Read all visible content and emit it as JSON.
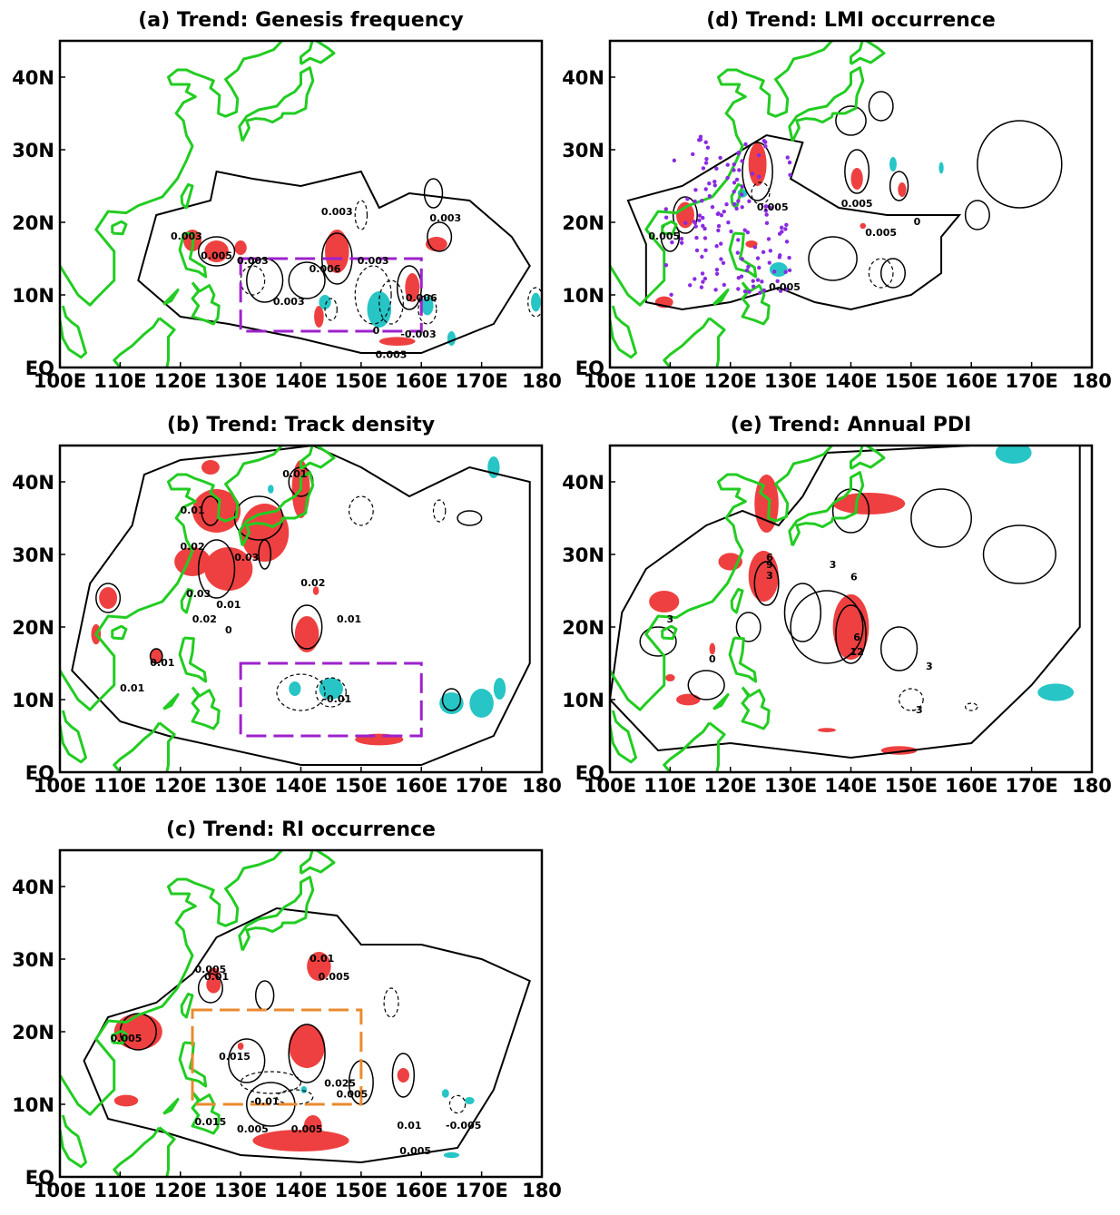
{
  "axes": {
    "lon_labels": [
      "100E",
      "110E",
      "120E",
      "130E",
      "140E",
      "150E",
      "160E",
      "170E",
      "180"
    ],
    "lat_labels": [
      "EQ",
      "10N",
      "20N",
      "30N",
      "40N"
    ]
  },
  "panels": [
    {
      "title": "(a) Trend: Genesis frequency",
      "contour_labels": [
        "0.003",
        "0.005",
        "0.003",
        "0.003",
        "0.006",
        "0.003",
        "0.003",
        "-0.003",
        "0.003",
        "0.003",
        "0.006",
        "0"
      ]
    },
    {
      "title": "(b) Trend: Track density",
      "contour_labels": [
        "0.01",
        "0.02",
        "0.03",
        "0.01",
        "0.02",
        "0.03",
        "0.02",
        "0.01",
        "0.01",
        "0.01",
        "0.01",
        "-0.01",
        "0"
      ]
    },
    {
      "title": "(c) Trend: RI occurrence",
      "contour_labels": [
        "0.005",
        "0.01",
        "0.01",
        "0.005",
        "0.005",
        "0.015",
        "0.025",
        "-0.01",
        "0.015",
        "0.005",
        "0.005",
        "0.005",
        "0.01",
        "-0.005",
        "0.005"
      ]
    },
    {
      "title": "(d) Trend: LMI occurrence",
      "contour_labels": [
        "0.005",
        "0.005",
        "0.005",
        "0.005",
        "0.005",
        "0"
      ]
    },
    {
      "title": "(e) Trend: Annual PDI",
      "contour_labels": [
        "3",
        "6",
        "9",
        "3",
        "6",
        "12",
        "3",
        "-3",
        "6",
        "3",
        "0"
      ]
    }
  ]
}
